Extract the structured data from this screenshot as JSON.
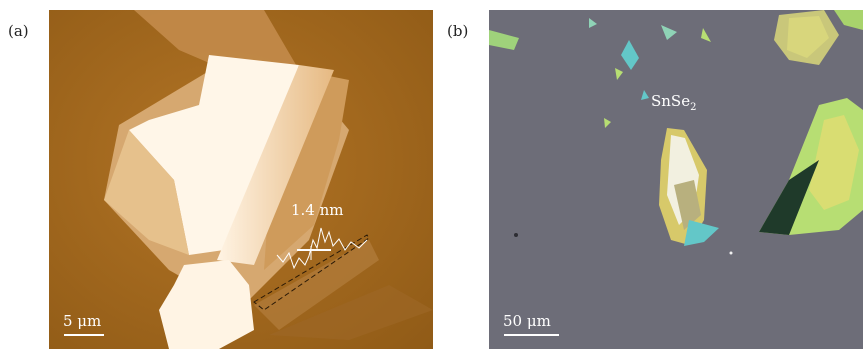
{
  "panels": [
    {
      "label": "(a)",
      "scale_label": "5 μm",
      "annotation": "1.4 nm"
    },
    {
      "label": "(b)",
      "scale_label": "50 μm",
      "annotation": "SnSe",
      "annotation_sub": "2"
    }
  ],
  "colors": {
    "afm_background": "#a2681c",
    "afm_flake": "#f2d2a2",
    "optical_background": "#6d6d78",
    "flake_green": "#b7de73",
    "flake_cyan": "#62c7c8"
  }
}
